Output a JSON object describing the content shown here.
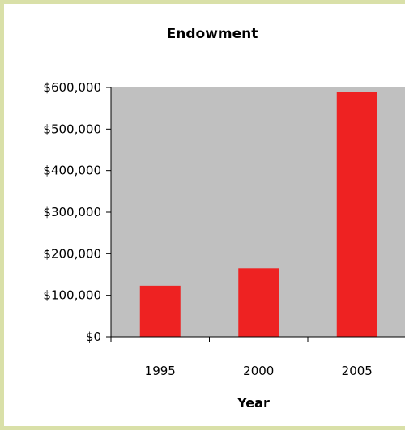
{
  "chart_data": {
    "type": "bar",
    "title": "Endowment",
    "xlabel": "Year",
    "ylabel": "",
    "categories": [
      "1995",
      "2000",
      "2005"
    ],
    "values": [
      123000,
      165000,
      590000
    ],
    "ylim": [
      0,
      600000
    ],
    "yticks": [
      0,
      100000,
      200000,
      300000,
      400000,
      500000,
      600000
    ],
    "ytick_labels": [
      "$0",
      "$100,000",
      "$200,000",
      "$300,000",
      "$400,000",
      "$500,000",
      "$600,000"
    ],
    "grid": false,
    "legend": "none",
    "colors": {
      "bar": "#ee2222",
      "plot_background": "#c0c0c0",
      "frame_border": "#d9e0a8"
    }
  }
}
